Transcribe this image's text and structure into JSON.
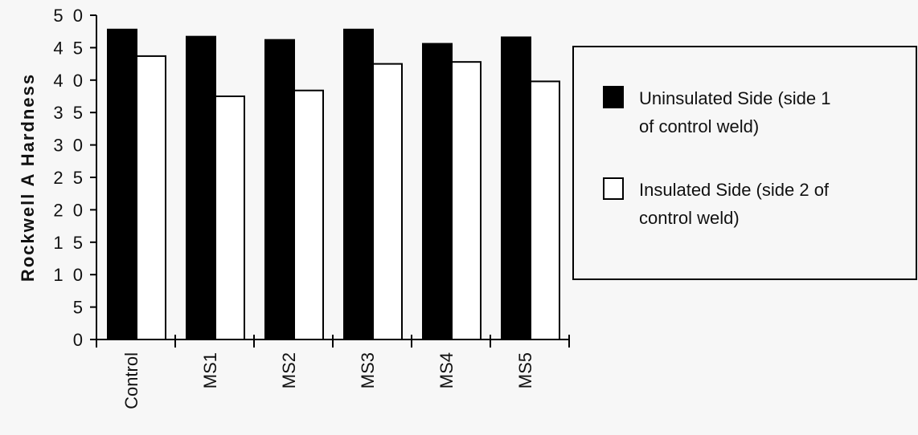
{
  "chart_data": {
    "type": "bar",
    "ylabel": "Rockwell A Hardness",
    "xlabel": "",
    "ylim": [
      0,
      50
    ],
    "yticks": [
      0,
      5,
      10,
      15,
      20,
      25,
      30,
      35,
      40,
      45,
      50
    ],
    "ytick_labels": [
      "0",
      "5",
      "1 0",
      "1 5",
      "2 0",
      "2 5",
      "3 0",
      "3 5",
      "4 0",
      "4 5",
      "5 0"
    ],
    "categories": [
      "Control",
      "MS1",
      "MS2",
      "MS3",
      "MS4",
      "MS5"
    ],
    "series": [
      {
        "name": "Uninsulated Side (side 1 of control weld)",
        "legend_lines": [
          "Uninsulated Side (side 1",
          "of control weld)"
        ],
        "color": "#000000",
        "values": [
          47.8,
          46.7,
          46.2,
          47.8,
          45.6,
          46.6
        ]
      },
      {
        "name": "Insulated Side (side 2 of control weld)",
        "legend_lines": [
          "Insulated Side (side 2 of",
          "control weld)"
        ],
        "color": "#ffffff",
        "values": [
          43.7,
          37.5,
          38.4,
          42.5,
          42.8,
          39.8
        ]
      }
    ],
    "grid": false,
    "legend_position": "right"
  }
}
